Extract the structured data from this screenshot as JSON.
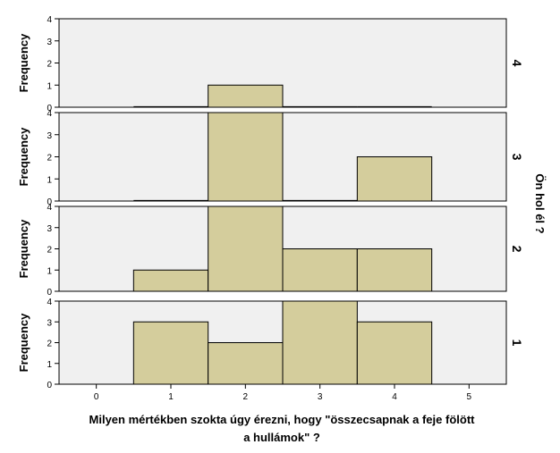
{
  "chart_data": {
    "type": "bar",
    "xlabel_lines": [
      "Milyen mértékben szokta úgy érezni, hogy \"összecsapnak a feje fölött",
      "a hullámok\" ?"
    ],
    "ylabel": "Frequency",
    "row_title": "Ön hol él ?",
    "xlim": [
      -0.5,
      5.5
    ],
    "x_ticks": [
      0,
      1,
      2,
      3,
      4,
      5
    ],
    "ylim": [
      0,
      4
    ],
    "y_ticks": [
      0,
      1,
      2,
      3,
      4
    ],
    "colors": {
      "bar": "#d4cd9c",
      "panel": "#f0f0f0",
      "line": "#000000"
    },
    "panels": [
      {
        "label": "4",
        "bars": [
          {
            "x": 1,
            "value": 0
          },
          {
            "x": 2,
            "value": 1
          },
          {
            "x": 3,
            "value": 0
          },
          {
            "x": 4,
            "value": 0
          }
        ]
      },
      {
        "label": "3",
        "bars": [
          {
            "x": 1,
            "value": 0
          },
          {
            "x": 2,
            "value": 4
          },
          {
            "x": 3,
            "value": 0
          },
          {
            "x": 4,
            "value": 2
          }
        ]
      },
      {
        "label": "2",
        "bars": [
          {
            "x": 1,
            "value": 1
          },
          {
            "x": 2,
            "value": 4
          },
          {
            "x": 3,
            "value": 2
          },
          {
            "x": 4,
            "value": 2
          }
        ]
      },
      {
        "label": "1",
        "bars": [
          {
            "x": 1,
            "value": 3
          },
          {
            "x": 2,
            "value": 2
          },
          {
            "x": 3,
            "value": 4
          },
          {
            "x": 4,
            "value": 3
          }
        ]
      }
    ]
  }
}
